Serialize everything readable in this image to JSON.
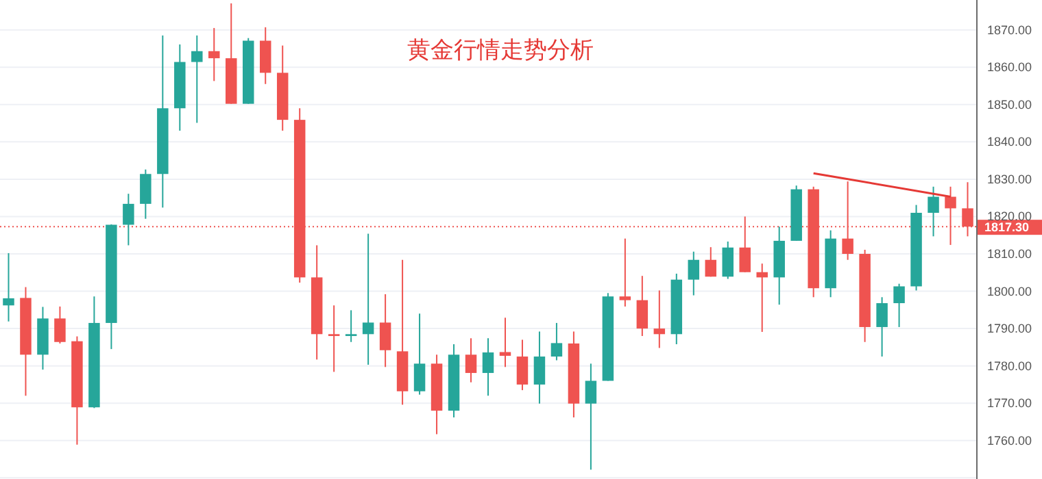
{
  "chart_data": {
    "type": "candlestick",
    "title": "黄金行情走势分析",
    "categories": [
      null,
      null,
      null,
      null,
      null,
      null,
      null,
      null,
      null,
      null,
      null,
      null,
      null,
      null,
      null,
      null,
      null,
      null,
      null,
      null,
      null,
      null,
      null,
      null,
      null,
      null,
      null,
      null,
      null,
      null,
      null,
      null,
      null,
      null,
      null,
      null,
      null,
      null,
      null,
      null,
      null,
      null,
      null,
      null,
      null,
      null,
      null,
      null,
      null,
      null,
      null,
      null,
      null,
      null,
      null,
      null,
      null
    ],
    "ohlc": [
      [
        1796.2,
        1810.2,
        1791.9,
        1798.1
      ],
      [
        1798.2,
        1801.1,
        1772.0,
        1783.0
      ],
      [
        1783.0,
        1795.8,
        1779.0,
        1792.7
      ],
      [
        1792.7,
        1795.9,
        1786.0,
        1786.4
      ],
      [
        1786.6,
        1787.9,
        1758.9,
        1768.9
      ],
      [
        1768.9,
        1798.6,
        1768.7,
        1791.5
      ],
      [
        1791.5,
        1817.9,
        1784.5,
        1817.8
      ],
      [
        1817.8,
        1826.1,
        1812.3,
        1823.4
      ],
      [
        1823.4,
        1832.6,
        1819.4,
        1831.4
      ],
      [
        1831.4,
        1868.5,
        1822.4,
        1849.0
      ],
      [
        1849.0,
        1866.1,
        1843.0,
        1861.4
      ],
      [
        1861.4,
        1868.5,
        1845.1,
        1864.3
      ],
      [
        1864.3,
        1870.5,
        1856.3,
        1862.4
      ],
      [
        1862.4,
        1877.1,
        1850.2,
        1850.2
      ],
      [
        1850.2,
        1867.8,
        1850.2,
        1867.1
      ],
      [
        1867.1,
        1870.7,
        1855.5,
        1858.5
      ],
      [
        1858.5,
        1865.8,
        1843.0,
        1845.9
      ],
      [
        1845.9,
        1849.0,
        1802.3,
        1803.7
      ],
      [
        1803.7,
        1812.3,
        1781.7,
        1788.5
      ],
      [
        1788.5,
        1796.2,
        1778.4,
        1788.0
      ],
      [
        1788.0,
        1794.9,
        1786.4,
        1788.5
      ],
      [
        1788.5,
        1815.4,
        1780.3,
        1791.6
      ],
      [
        1791.6,
        1799.2,
        1779.7,
        1784.2
      ],
      [
        1783.9,
        1808.4,
        1769.6,
        1773.2
      ],
      [
        1773.2,
        1794.0,
        1772.3,
        1780.6
      ],
      [
        1780.6,
        1783.0,
        1761.7,
        1768.0
      ],
      [
        1768.0,
        1785.8,
        1766.2,
        1783.0
      ],
      [
        1783.0,
        1787.4,
        1775.6,
        1778.1
      ],
      [
        1778.1,
        1787.4,
        1772.0,
        1783.6
      ],
      [
        1783.7,
        1792.9,
        1779.7,
        1782.7
      ],
      [
        1782.5,
        1787.0,
        1773.5,
        1775.0
      ],
      [
        1775.0,
        1789.2,
        1769.9,
        1782.5
      ],
      [
        1782.5,
        1791.5,
        1781.5,
        1786.1
      ],
      [
        1786.0,
        1789.2,
        1766.2,
        1769.9
      ],
      [
        1769.9,
        1780.6,
        1752.2,
        1776.0
      ],
      [
        1776.0,
        1799.5,
        1776.0,
        1798.6
      ],
      [
        1798.6,
        1814.1,
        1795.9,
        1797.6
      ],
      [
        1797.6,
        1804.1,
        1788.0,
        1790.0
      ],
      [
        1790.0,
        1800.2,
        1784.8,
        1788.5
      ],
      [
        1788.5,
        1804.7,
        1785.8,
        1803.1
      ],
      [
        1803.1,
        1810.6,
        1798.9,
        1808.4
      ],
      [
        1808.4,
        1811.8,
        1803.9,
        1803.9
      ],
      [
        1803.9,
        1813.3,
        1803.3,
        1811.7
      ],
      [
        1811.7,
        1820.0,
        1805.1,
        1805.1
      ],
      [
        1805.1,
        1807.4,
        1789.1,
        1803.7
      ],
      [
        1803.7,
        1817.3,
        1796.4,
        1813.5
      ],
      [
        1813.5,
        1828.3,
        1813.5,
        1827.3
      ],
      [
        1827.3,
        1828.0,
        1798.4,
        1800.8
      ],
      [
        1800.8,
        1816.3,
        1798.4,
        1814.1
      ],
      [
        1814.1,
        1829.4,
        1808.4,
        1810.0
      ],
      [
        1810.0,
        1811.1,
        1786.4,
        1790.4
      ],
      [
        1790.4,
        1798.4,
        1782.5,
        1796.8
      ],
      [
        1796.8,
        1802.0,
        1790.4,
        1801.3
      ],
      [
        1801.3,
        1823.1,
        1800.2,
        1821.0
      ],
      [
        1821.0,
        1828.0,
        1814.7,
        1825.3
      ],
      [
        1825.3,
        1828.0,
        1812.4,
        1822.2
      ],
      [
        1822.2,
        1829.2,
        1814.7,
        1817.3
      ]
    ],
    "colors": [
      "#26a69a",
      "#ef5350",
      "#26a69a",
      "#ef5350",
      "#ef5350",
      "#26a69a",
      "#26a69a",
      "#26a69a",
      "#26a69a",
      "#26a69a",
      "#26a69a",
      "#26a69a",
      "#ef5350",
      "#ef5350",
      "#26a69a",
      "#ef5350",
      "#ef5350",
      "#ef5350",
      "#ef5350",
      "#ef5350",
      "#26a69a",
      "#26a69a",
      "#ef5350",
      "#ef5350",
      "#26a69a",
      "#ef5350",
      "#26a69a",
      "#ef5350",
      "#26a69a",
      "#ef5350",
      "#ef5350",
      "#26a69a",
      "#26a69a",
      "#ef5350",
      "#26a69a",
      "#26a69a",
      "#ef5350",
      "#ef5350",
      "#ef5350",
      "#26a69a",
      "#26a69a",
      "#ef5350",
      "#26a69a",
      "#ef5350",
      "#ef5350",
      "#26a69a",
      "#26a69a",
      "#ef5350",
      "#26a69a",
      "#ef5350",
      "#ef5350",
      "#26a69a",
      "#26a69a",
      "#26a69a",
      "#26a69a",
      "#ef5350",
      "#ef5350"
    ],
    "series": [
      {
        "type": "line",
        "color": "#e53935",
        "values": [
          null,
          null,
          null,
          null,
          null,
          null,
          null,
          null,
          null,
          null,
          null,
          null,
          null,
          null,
          null,
          null,
          null,
          null,
          null,
          null,
          null,
          null,
          null,
          null,
          null,
          null,
          null,
          null,
          null,
          null,
          null,
          null,
          null,
          null,
          null,
          null,
          null,
          null,
          null,
          null,
          null,
          null,
          null,
          null,
          null,
          null,
          null,
          1831.6,
          null,
          null,
          null,
          null,
          null,
          null,
          null,
          1825.3,
          null
        ]
      }
    ],
    "ylim": [
      1749.7,
      1878
    ],
    "yticks": [
      {
        "value": 1750,
        "label": null
      },
      {
        "value": 1760,
        "label": "1760.00"
      },
      {
        "value": 1770,
        "label": "1770.00"
      },
      {
        "value": 1780,
        "label": "1780.00"
      },
      {
        "value": 1790,
        "label": "1790.00"
      },
      {
        "value": 1800,
        "label": "1800.00"
      },
      {
        "value": 1810,
        "label": "1810.00"
      },
      {
        "value": 1820,
        "label": "1820.00"
      },
      {
        "value": 1830,
        "label": "1830.00"
      },
      {
        "value": 1840,
        "label": "1840.00"
      },
      {
        "value": 1850,
        "label": "1850.00"
      },
      {
        "value": 1860,
        "label": "1860.00"
      },
      {
        "value": 1870,
        "label": "1870.00"
      }
    ],
    "ref_lines": [
      {
        "axis": "y",
        "value": 1817.3,
        "label": "1817.30",
        "color": "#ef5350",
        "line_style": "dotted"
      }
    ],
    "grid": "y",
    "tick_labels": "y"
  }
}
